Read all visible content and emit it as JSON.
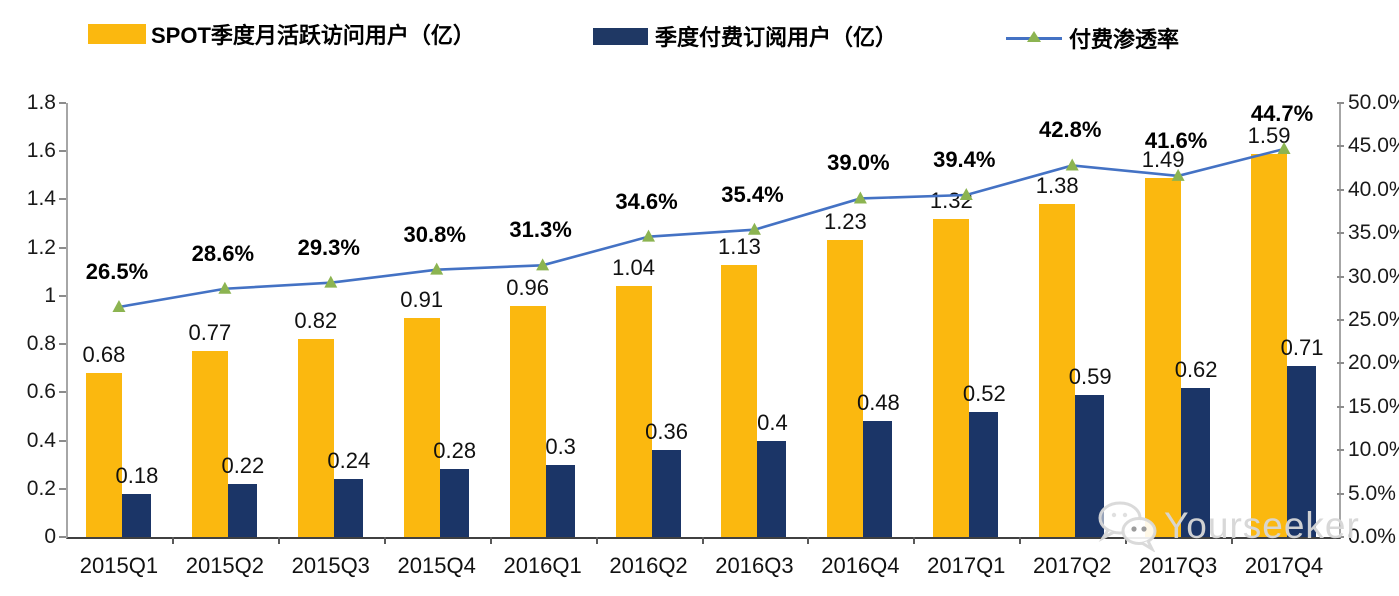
{
  "legend": {
    "items": [
      {
        "label": "SPOT季度月活跃访问用户（亿）",
        "type": "bar",
        "color": "#FBB80F"
      },
      {
        "label": "季度付费订阅用户（亿）",
        "type": "bar",
        "color": "#1F3864"
      },
      {
        "label": "付费渗透率",
        "type": "line",
        "color": "#4472C4",
        "marker_color": "#8CB451"
      }
    ]
  },
  "watermark": {
    "text": "Yourseeker",
    "icon": "wechat-icon"
  },
  "colors": {
    "mau_bar": "#FBB80F",
    "sub_bar": "#1B3567",
    "line": "#4472C4",
    "marker": "#8CB451",
    "axis_spine": "#a6a6a6",
    "x_axis": "#404040"
  },
  "chart_data": {
    "type": "bar",
    "subtype": "combo bar+line, dual axis",
    "categories": [
      "2015Q1",
      "2015Q2",
      "2015Q3",
      "2015Q4",
      "2016Q1",
      "2016Q2",
      "2016Q3",
      "2016Q4",
      "2017Q1",
      "2017Q2",
      "2017Q3",
      "2017Q4"
    ],
    "series": [
      {
        "name": "SPOT季度月活跃访问用户（亿）",
        "type": "bar",
        "axis": "left",
        "color": "#FBB80F",
        "values": [
          0.68,
          0.77,
          0.82,
          0.91,
          0.96,
          1.04,
          1.13,
          1.23,
          1.32,
          1.38,
          1.49,
          1.59
        ],
        "labels": [
          "0.68",
          "0.77",
          "0.82",
          "0.91",
          "0.96",
          "1.04",
          "1.13",
          "1.23",
          "1.32",
          "1.38",
          "1.49",
          "1.59"
        ]
      },
      {
        "name": "季度付费订阅用户（亿）",
        "type": "bar",
        "axis": "left",
        "color": "#1B3567",
        "values": [
          0.18,
          0.22,
          0.24,
          0.28,
          0.3,
          0.36,
          0.4,
          0.48,
          0.52,
          0.59,
          0.62,
          0.71
        ],
        "labels": [
          "0.18",
          "0.22",
          "0.24",
          "0.28",
          "0.3",
          "0.36",
          "0.4",
          "0.48",
          "0.52",
          "0.59",
          "0.62",
          "0.71"
        ]
      },
      {
        "name": "付费渗透率",
        "type": "line",
        "axis": "right",
        "color": "#4472C4",
        "marker": "triangle",
        "marker_color": "#8CB451",
        "values": [
          26.5,
          28.6,
          29.3,
          30.8,
          31.3,
          34.6,
          35.4,
          39.0,
          39.4,
          42.8,
          41.6,
          44.7
        ],
        "labels": [
          "26.5%",
          "28.6%",
          "29.3%",
          "30.8%",
          "31.3%",
          "34.6%",
          "35.4%",
          "39.0%",
          "39.4%",
          "42.8%",
          "41.6%",
          "44.7%"
        ]
      }
    ],
    "left_axis": {
      "min": 0,
      "max": 1.8,
      "ticks": [
        "1.8",
        "1.6",
        "1.4",
        "1.2",
        "1",
        "0.8",
        "0.6",
        "0.4",
        "0.2",
        "0"
      ]
    },
    "right_axis": {
      "min": 0,
      "max": 50,
      "ticks": [
        "50.0%",
        "45.0%",
        "40.0%",
        "35.0%",
        "30.0%",
        "25.0%",
        "20.0%",
        "15.0%",
        "10.0%",
        "5.0%",
        "0.0%"
      ]
    },
    "title": "",
    "xlabel": "",
    "ylabel": "",
    "grid": false,
    "legend_position": "top"
  }
}
